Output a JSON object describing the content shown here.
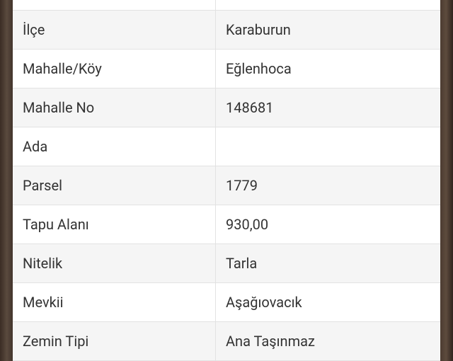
{
  "rows": [
    {
      "label": "",
      "value": ""
    },
    {
      "label": "İlçe",
      "value": "Karaburun"
    },
    {
      "label": "Mahalle/Köy",
      "value": "Eğlenhoca"
    },
    {
      "label": "Mahalle No",
      "value": "148681"
    },
    {
      "label": "Ada",
      "value": ""
    },
    {
      "label": "Parsel",
      "value": "1779"
    },
    {
      "label": "Tapu Alanı",
      "value": "930,00"
    },
    {
      "label": "Nitelik",
      "value": "Tarla"
    },
    {
      "label": "Mevkii",
      "value": "Aşağıovacık"
    },
    {
      "label": "Zemin Tipi",
      "value": "Ana Taşınmaz"
    }
  ]
}
